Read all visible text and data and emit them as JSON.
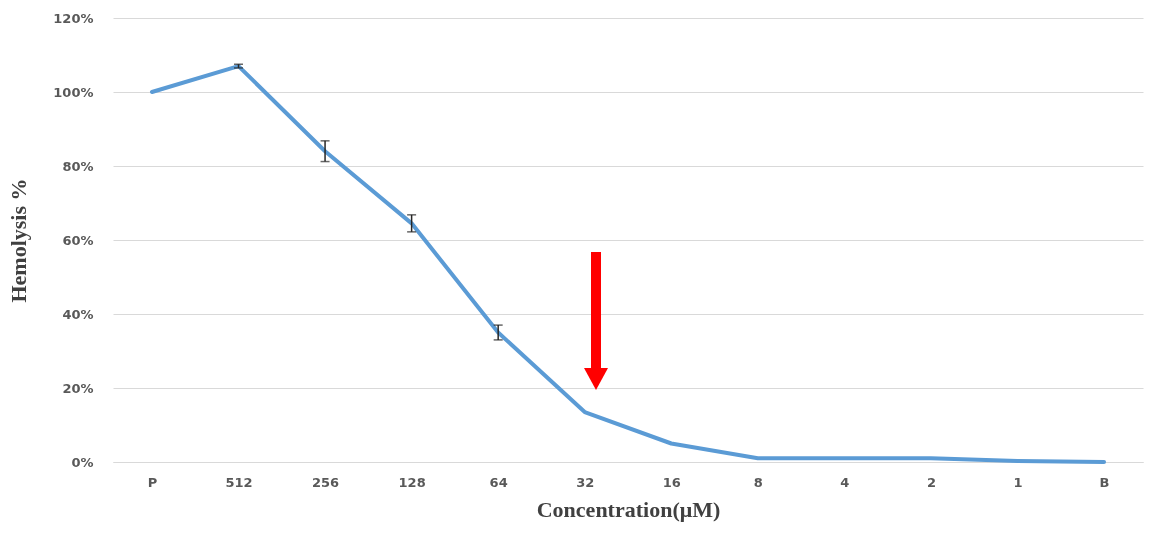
{
  "chart_data": {
    "type": "line",
    "xlabel": "Concentration(μM)",
    "ylabel": "Hemolysis %",
    "categories": [
      "P",
      "512",
      "256",
      "128",
      "64",
      "32",
      "16",
      "8",
      "4",
      "2",
      "1",
      "B"
    ],
    "series": [
      {
        "color": "#5b9bd5",
        "values": [
          100,
          107,
          84,
          64.5,
          35,
          13.5,
          5,
          1,
          1,
          1,
          0.3,
          0
        ],
        "errors": [
          null,
          0.5,
          2.8,
          2.3,
          2,
          null,
          null,
          null,
          null,
          null,
          null,
          null
        ]
      }
    ],
    "ylim": [
      0,
      120
    ],
    "yticks": [
      {
        "value": 0,
        "label": "0%"
      },
      {
        "value": 20,
        "label": "20%"
      },
      {
        "value": 40,
        "label": "40%"
      },
      {
        "value": 60,
        "label": "60%"
      },
      {
        "value": 80,
        "label": "80%"
      },
      {
        "value": 100,
        "label": "100%"
      },
      {
        "value": 120,
        "label": "120%"
      }
    ],
    "grid": "y",
    "marker": "none",
    "line_style": "solid"
  }
}
